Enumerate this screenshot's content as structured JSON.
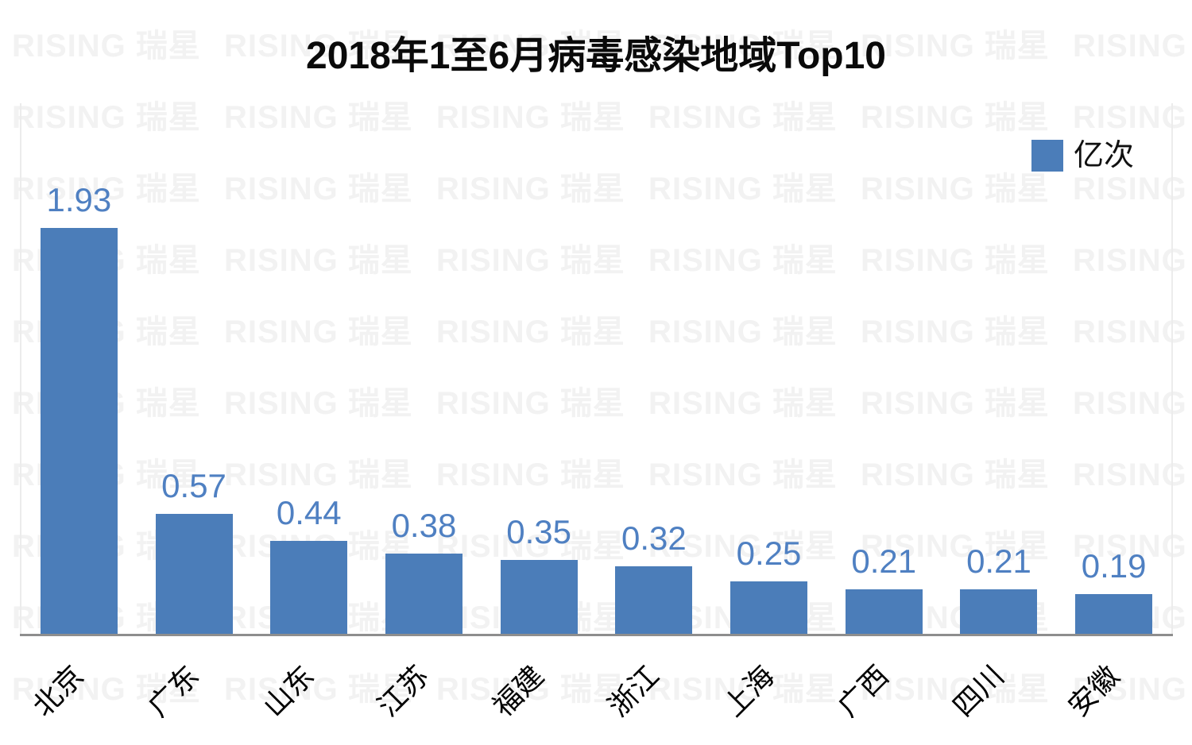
{
  "title": "2018年1至6月病毒感染地域Top10",
  "legend": {
    "label": "亿次"
  },
  "watermark": {
    "text": "RISING 瑞星"
  },
  "colors": {
    "bar": "#4b7db9",
    "value_label": "#4f80c2",
    "axis_line": "#8e8e8e",
    "plot_border": "#ececec",
    "watermark": "#f2f2f2",
    "title_text": "#0a0a0a"
  },
  "chart_data": {
    "type": "bar",
    "title": "2018年1至6月病毒感染地域Top10",
    "categories": [
      "北京",
      "广东",
      "山东",
      "江苏",
      "福建",
      "浙江",
      "上海",
      "广西",
      "四川",
      "安徽"
    ],
    "values": [
      1.93,
      0.57,
      0.44,
      0.38,
      0.35,
      0.32,
      0.25,
      0.21,
      0.21,
      0.19
    ],
    "value_labels": [
      "1.93",
      "0.57",
      "0.44",
      "0.38",
      "0.35",
      "0.32",
      "0.25",
      "0.21",
      "0.21",
      "0.19"
    ],
    "series_name": "亿次",
    "unit": "亿次",
    "xlabel": "",
    "ylabel": "",
    "ylim": [
      0,
      2.5
    ],
    "grid": false,
    "y_axis_ticks_visible": false,
    "legend_position": "top-right",
    "bar_color": "#4b7db9",
    "x_label_rotation_deg": -45
  }
}
